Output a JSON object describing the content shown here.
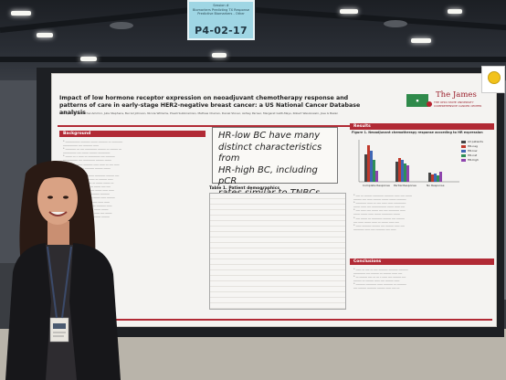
{
  "sign": {
    "top_text": "Session #\nBiomarkers Predicting TX Response\nPredictive Biomarkers - Other",
    "board_id": "P4-02-17"
  },
  "poster": {
    "title": "Impact of low hormone receptor expression on neoadjuvant chemotherapy response and patterns of care in early-stage HER2-negative breast cancer: a US National Cancer Database analysis",
    "authors": "Shirley Bellicer, Rachel Ammini, Julia Stephens, Bei Gil Johnson, Nicole Williams, Preeti Subbiramian, Mathew Cherian, Daniel Stover, Ashley Pariser, Margaret Gatti-Mays, Robert Wesolowski, Jose G Bazan",
    "brand_name": "The James",
    "brand_sub": "THE OHIO STATE UNIVERSITY COMPREHENSIVE CANCER CENTER",
    "sections": {
      "background": "Background",
      "table": "Table 1. Patient demographics",
      "results": "Results",
      "conclusions": "Conclusions"
    },
    "figure_title": "Figure 1. Neoadjuvant chemotherapy response according to HR expression",
    "callout_lines": [
      "HR-low BC have many",
      "distinct characteristics from",
      "HR-high BC, including pCR",
      "rates similar to TNBCs"
    ],
    "legend": [
      "All patients",
      "HR-neg",
      "HR-low",
      "HR-nat",
      "HR-high"
    ],
    "chart_groups": [
      "Complete Response",
      "Partial Response",
      "No Response"
    ]
  },
  "colors": {
    "accent_red": "#b12a35",
    "sign_blue": "#9fd6e4",
    "series": [
      "#444444",
      "#c0392b",
      "#3f66b5",
      "#2e8f57",
      "#8e44ad"
    ]
  }
}
